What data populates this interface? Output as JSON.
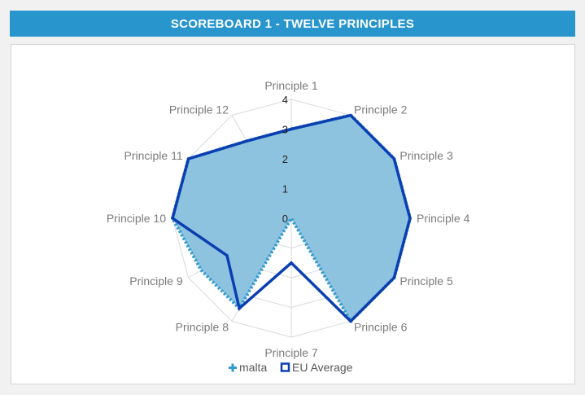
{
  "header": {
    "title": "SCOREBOARD 1 - TWELVE PRINCIPLES"
  },
  "chart_data": {
    "type": "radar",
    "categories": [
      "Principle 1",
      "Principle 2",
      "Principle 3",
      "Principle 4",
      "Principle 5",
      "Principle 6",
      "Principle 7",
      "Principle 8",
      "Principle 9",
      "Principle 10",
      "Principle 11",
      "Principle 12"
    ],
    "rlim": [
      0,
      4
    ],
    "ticks": [
      "0",
      "1",
      "2",
      "3",
      "4"
    ],
    "grid": true,
    "legend_position": "bottom",
    "series": [
      {
        "name": "malta",
        "values": [
          3,
          4,
          4,
          4,
          4,
          4,
          0,
          3.5,
          3.5,
          4,
          4,
          3
        ],
        "color": "#2f9bd2",
        "style": "dotted-fill"
      },
      {
        "name": "EU Average",
        "values": [
          3,
          4,
          4,
          4,
          4,
          4,
          1.5,
          3.5,
          2.5,
          4,
          4,
          3
        ],
        "color": "#0b3fb0",
        "style": "solid-line"
      }
    ]
  }
}
